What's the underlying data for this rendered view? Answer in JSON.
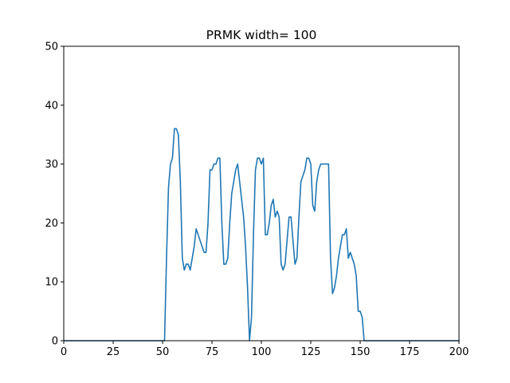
{
  "chart_data": {
    "type": "line",
    "title": "PRMK width= 100",
    "xlabel": "",
    "ylabel": "",
    "xlim": [
      0,
      200
    ],
    "ylim": [
      0,
      50
    ],
    "xticks": [
      0,
      25,
      50,
      75,
      100,
      125,
      150,
      175,
      200
    ],
    "xtick_labels": [
      "0",
      "25",
      "50",
      "75",
      "100",
      "125",
      "150",
      "175",
      "200"
    ],
    "yticks": [
      0,
      10,
      20,
      30,
      40,
      50
    ],
    "ytick_labels": [
      "0",
      "10",
      "20",
      "30",
      "40",
      "50"
    ],
    "grid": false,
    "series": [
      {
        "color": "#1f77b4",
        "x": [
          0,
          10,
          20,
          30,
          40,
          50,
          51,
          52,
          53,
          54,
          55,
          56,
          57,
          58,
          59,
          60,
          61,
          62,
          63,
          64,
          65,
          66,
          67,
          68,
          69,
          70,
          71,
          72,
          73,
          74,
          75,
          76,
          77,
          78,
          79,
          80,
          81,
          82,
          83,
          84,
          85,
          86,
          87,
          88,
          89,
          90,
          91,
          92,
          93,
          94,
          95,
          96,
          97,
          98,
          99,
          100,
          101,
          102,
          103,
          104,
          105,
          106,
          107,
          108,
          109,
          110,
          111,
          112,
          113,
          114,
          115,
          116,
          117,
          118,
          119,
          120,
          121,
          122,
          123,
          124,
          125,
          126,
          127,
          128,
          129,
          130,
          131,
          132,
          133,
          134,
          135,
          136,
          137,
          138,
          139,
          140,
          141,
          142,
          143,
          144,
          145,
          146,
          147,
          148,
          149,
          150,
          151,
          152,
          160,
          170,
          180,
          190,
          200
        ],
        "y": [
          0,
          0,
          0,
          0,
          0,
          0,
          0,
          14,
          26,
          30,
          31,
          36,
          36,
          35,
          27,
          14,
          12,
          13,
          13,
          12,
          14,
          16,
          19,
          18,
          17,
          16,
          15,
          15,
          20,
          29,
          29,
          30,
          30,
          31,
          31,
          20,
          13,
          13,
          14,
          20,
          25,
          27,
          29,
          30,
          27,
          24,
          21,
          16,
          9,
          0,
          4,
          18,
          29,
          31,
          31,
          30,
          31,
          18,
          18,
          20,
          23,
          24,
          21,
          22,
          21,
          13,
          12,
          13,
          17,
          21,
          21,
          17,
          13,
          14,
          21,
          27,
          28,
          29,
          31,
          31,
          30,
          23,
          22,
          27,
          29,
          30,
          30,
          30,
          30,
          30,
          14,
          8,
          9,
          11,
          14,
          16,
          18,
          18,
          19,
          14,
          15,
          14,
          13,
          11,
          5,
          5,
          4,
          0,
          0,
          0,
          0,
          0,
          0
        ]
      }
    ]
  }
}
